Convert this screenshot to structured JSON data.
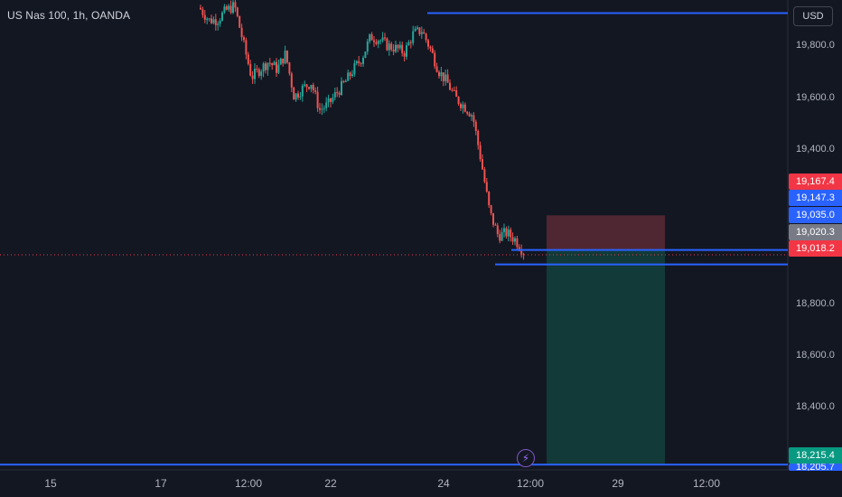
{
  "header": {
    "symbol_title": "US Nas 100, 1h, OANDA"
  },
  "toolbar": {
    "currency_label": "USD"
  },
  "icons": {
    "alert": "lightning-icon"
  },
  "colors": {
    "background": "#131722",
    "grid": "#1e222d",
    "up_candle": "#26a69a",
    "down_candle": "#ef5350",
    "horizontal_line": "#2962ff",
    "stop_zone": "#5b2a36",
    "target_zone": "#123c3a",
    "last_price": "#f23645",
    "entry_badge": "#2962ff",
    "stop_badge": "#f23645",
    "target_badge": "#089981",
    "current_badge": "#787b86"
  },
  "price_axis": {
    "ticks": [
      "19,800.0",
      "19,600.0",
      "19,400.0",
      "18,800.0",
      "18,600.0",
      "18,400.0"
    ],
    "badges": {
      "stop": "19,167.4",
      "level": "19,147.3",
      "entry": "19,035.0",
      "current": "19,020.3",
      "last": "19,018.2",
      "target": "18,215.4",
      "bottom_cut": "18,205.7"
    }
  },
  "time_axis": {
    "ticks": [
      "15",
      "17",
      "12:00",
      "22",
      "24",
      "12:00",
      "29",
      "12:00"
    ]
  },
  "chart_data": {
    "type": "candlestick",
    "symbol": "US Nas 100",
    "timeframe": "1h",
    "source": "OANDA",
    "x": [
      "15",
      "17",
      "12:00",
      "22",
      "24",
      "12:00",
      "29",
      "12:00"
    ],
    "ylim": [
      18195,
      19990
    ],
    "y_ticks": [
      18400,
      18600,
      18800,
      19400,
      19600,
      19800
    ],
    "price_path": [
      [
        19960,
        19950
      ],
      [
        19905,
        19920
      ],
      [
        19890,
        19940
      ],
      [
        19935,
        19965
      ],
      [
        19960,
        19975
      ],
      [
        19870,
        19790
      ],
      [
        19750,
        19640
      ],
      [
        19620,
        19830
      ],
      [
        19810,
        19700
      ],
      [
        19690,
        19760
      ],
      [
        19780,
        19790
      ],
      [
        19640,
        19600
      ],
      [
        19585,
        19720
      ],
      [
        19700,
        19650
      ],
      [
        19600,
        19540
      ],
      [
        19560,
        19620
      ],
      [
        19610,
        19660
      ],
      [
        19650,
        19700
      ],
      [
        19690,
        19760
      ],
      [
        19740,
        19800
      ],
      [
        19830,
        19870
      ],
      [
        19860,
        19820
      ],
      [
        19800,
        19830
      ],
      [
        19820,
        19790
      ],
      [
        19770,
        19810
      ],
      [
        19840,
        19880
      ],
      [
        19860,
        19890
      ],
      [
        19830,
        19780
      ],
      [
        19740,
        19700
      ],
      [
        19690,
        19660
      ],
      [
        19640,
        19590
      ],
      [
        19600,
        19570
      ],
      [
        19560,
        19540
      ],
      [
        19420,
        19330
      ],
      [
        19230,
        19130
      ],
      [
        19100,
        19080
      ],
      [
        19110,
        19090
      ],
      [
        19080,
        19070
      ],
      [
        19040,
        19020
      ]
    ],
    "series": [
      {
        "name": "US Nas 100",
        "last": 19018.2
      }
    ],
    "horizontal_lines": [
      19940,
      19035.0,
      18980,
      18215.4
    ],
    "position": {
      "type": "short",
      "entry": 19035.0,
      "stop": 19167.4,
      "target": 18215.4
    },
    "last_price": 19018.2,
    "grid": false,
    "legend": "none"
  }
}
